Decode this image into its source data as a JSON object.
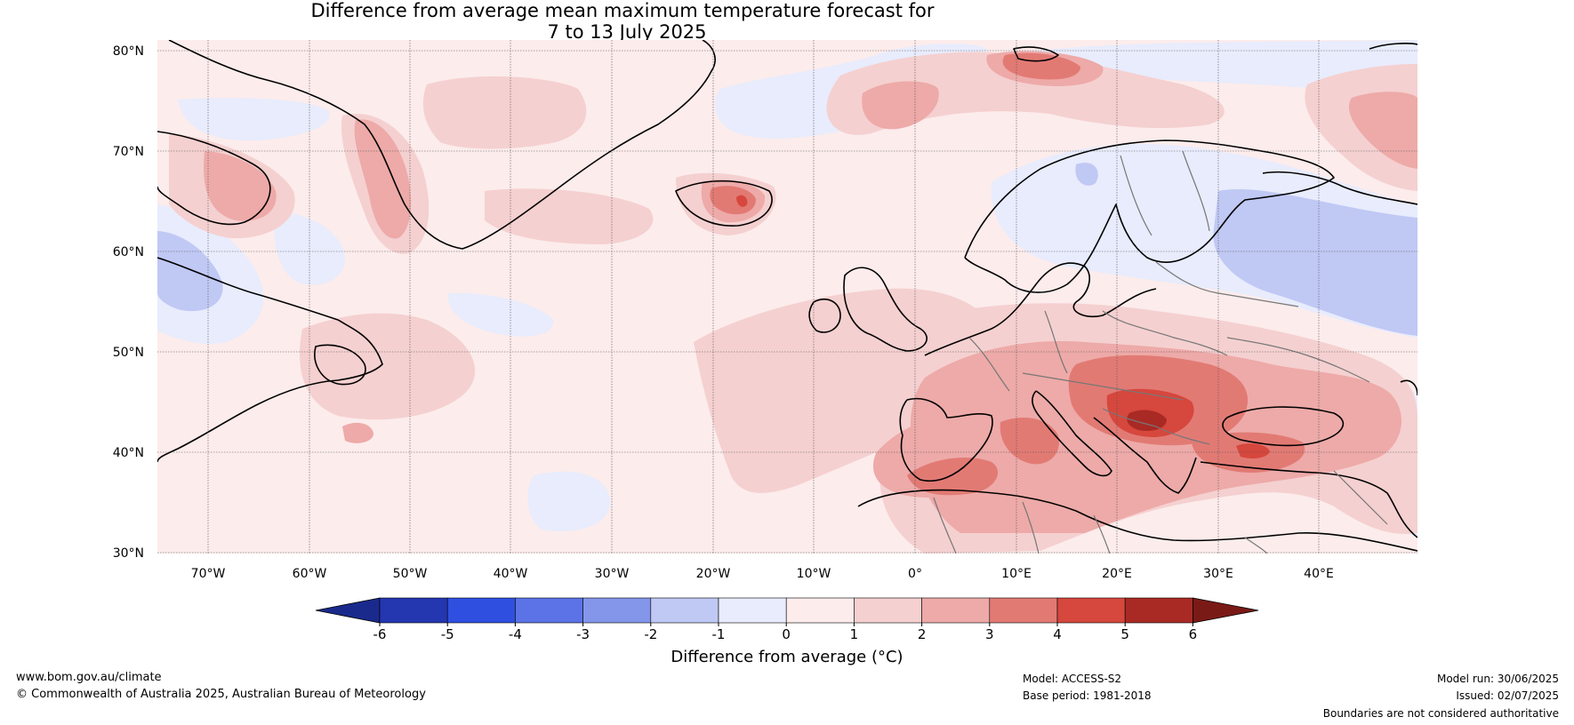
{
  "title": {
    "line1": "Difference from average mean maximum temperature forecast for",
    "line2": "7 to 13 July 2025"
  },
  "map": {
    "latitude_labels": [
      "80°N",
      "70°N",
      "60°N",
      "50°N",
      "40°N",
      "30°N"
    ],
    "longitude_labels": [
      "70°W",
      "60°W",
      "50°W",
      "40°W",
      "30°W",
      "20°W",
      "10°W",
      "0°",
      "10°E",
      "20°E",
      "30°E",
      "40°E"
    ],
    "features": [
      "Greenland",
      "Iceland",
      "Europe",
      "Scandinavia",
      "North Africa",
      "Black Sea",
      "Canada"
    ]
  },
  "colorbar": {
    "ticks": [
      "-6",
      "-5",
      "-4",
      "-3",
      "-2",
      "-1",
      "0",
      "1",
      "2",
      "3",
      "4",
      "5",
      "6"
    ],
    "colors": [
      "#1a2a8c",
      "#2436b0",
      "#2f4fe0",
      "#5b73e6",
      "#8496ea",
      "#c0c8f4",
      "#e8ecfc",
      "#fcecec",
      "#f5d0d0",
      "#edaaa8",
      "#e27a74",
      "#d6473d",
      "#a92a24",
      "#7a1a16"
    ],
    "label": "Difference from average (°C)"
  },
  "footer": {
    "website": "www.bom.gov.au/climate",
    "copyright": "© Commonwealth of Australia 2025, Australian Bureau of Meteorology",
    "model": "Model: ACCESS-S2",
    "base_period": "Base period: 1981-2018",
    "model_run": "Model run: 30/06/2025",
    "issued": "Issued: 02/07/2025",
    "disclaimer": "Boundaries are not considered authoritative"
  }
}
